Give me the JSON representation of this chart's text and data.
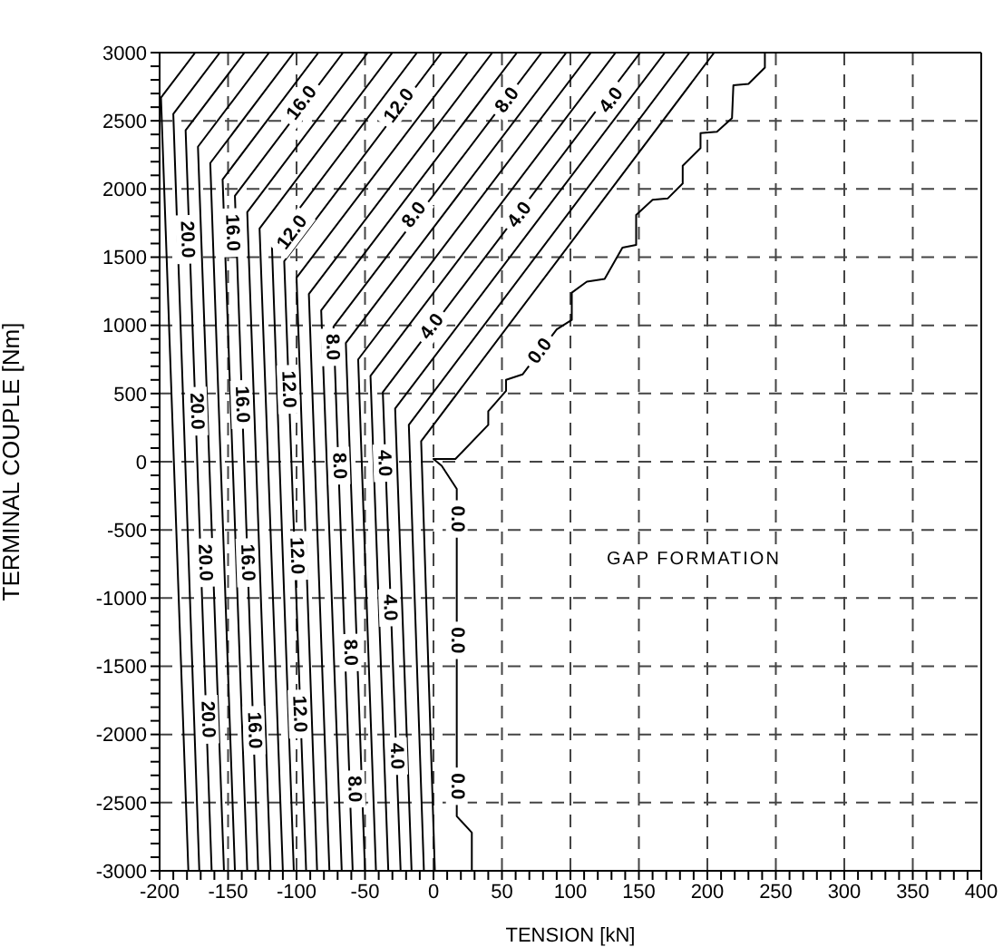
{
  "chart_data": {
    "type": "line",
    "xlabel": "TENSION [kN]",
    "ylabel": "TERMINAL COUPLE [Nm]",
    "xlim": [
      -200,
      400
    ],
    "ylim": [
      -3000,
      3000
    ],
    "xticks": [
      -200,
      {
        "value": -190,
        "label": null
      },
      {
        "value": -180,
        "label": null
      },
      {
        "value": -170,
        "label": null
      },
      {
        "value": -160,
        "label": null
      },
      -150,
      {
        "value": -140,
        "label": null
      },
      {
        "value": -130,
        "label": null
      },
      {
        "value": -120,
        "label": null
      },
      {
        "value": -110,
        "label": null
      },
      -100,
      {
        "value": -90,
        "label": null
      },
      {
        "value": -80,
        "label": null
      },
      {
        "value": -70,
        "label": null
      },
      {
        "value": -60,
        "label": null
      },
      -50,
      {
        "value": -40,
        "label": null
      },
      {
        "value": -30,
        "label": null
      },
      {
        "value": -20,
        "label": null
      },
      {
        "value": -10,
        "label": null
      },
      0,
      {
        "value": 10,
        "label": null
      },
      {
        "value": 20,
        "label": null
      },
      {
        "value": 30,
        "label": null
      },
      {
        "value": 40,
        "label": null
      },
      50,
      {
        "value": 60,
        "label": null
      },
      {
        "value": 70,
        "label": null
      },
      {
        "value": 80,
        "label": null
      },
      {
        "value": 90,
        "label": null
      },
      100,
      {
        "value": 110,
        "label": null
      },
      {
        "value": 120,
        "label": null
      },
      {
        "value": 130,
        "label": null
      },
      {
        "value": 140,
        "label": null
      },
      150,
      {
        "value": 160,
        "label": null
      },
      {
        "value": 170,
        "label": null
      },
      {
        "value": 180,
        "label": null
      },
      {
        "value": 190,
        "label": null
      },
      200,
      {
        "value": 210,
        "label": null
      },
      {
        "value": 220,
        "label": null
      },
      {
        "value": 230,
        "label": null
      },
      {
        "value": 240,
        "label": null
      },
      250,
      {
        "value": 260,
        "label": null
      },
      {
        "value": 270,
        "label": null
      },
      {
        "value": 280,
        "label": null
      },
      {
        "value": 290,
        "label": null
      },
      300,
      {
        "value": 310,
        "label": null
      },
      {
        "value": 320,
        "label": null
      },
      {
        "value": 330,
        "label": null
      },
      {
        "value": 340,
        "label": null
      },
      350,
      {
        "value": 360,
        "label": null
      },
      {
        "value": 370,
        "label": null
      },
      {
        "value": 380,
        "label": null
      },
      {
        "value": 390,
        "label": null
      },
      400
    ],
    "yticks": [
      -3000,
      {
        "value": -2900,
        "label": null
      },
      {
        "value": -2800,
        "label": null
      },
      {
        "value": -2700,
        "label": null
      },
      {
        "value": -2600,
        "label": null
      },
      -2500,
      {
        "value": -2400,
        "label": null
      },
      {
        "value": -2300,
        "label": null
      },
      {
        "value": -2200,
        "label": null
      },
      {
        "value": -2100,
        "label": null
      },
      -2000,
      {
        "value": -1900,
        "label": null
      },
      {
        "value": -1800,
        "label": null
      },
      {
        "value": -1700,
        "label": null
      },
      {
        "value": -1600,
        "label": null
      },
      -1500,
      {
        "value": -1400,
        "label": null
      },
      {
        "value": -1300,
        "label": null
      },
      {
        "value": -1200,
        "label": null
      },
      {
        "value": -1100,
        "label": null
      },
      -1000,
      {
        "value": -900,
        "label": null
      },
      {
        "value": -800,
        "label": null
      },
      {
        "value": -700,
        "label": null
      },
      {
        "value": -600,
        "label": null
      },
      -500,
      {
        "value": -400,
        "label": null
      },
      {
        "value": -300,
        "label": null
      },
      {
        "value": -200,
        "label": null
      },
      {
        "value": -100,
        "label": null
      },
      0,
      {
        "value": 100,
        "label": null
      },
      {
        "value": 200,
        "label": null
      },
      {
        "value": 300,
        "label": null
      },
      {
        "value": 400,
        "label": null
      },
      500,
      {
        "value": 600,
        "label": null
      },
      {
        "value": 700,
        "label": null
      },
      {
        "value": 800,
        "label": null
      },
      {
        "value": 900,
        "label": null
      },
      1000,
      {
        "value": 1100,
        "label": null
      },
      {
        "value": 1200,
        "label": null
      },
      {
        "value": 1300,
        "label": null
      },
      {
        "value": 1400,
        "label": null
      },
      1500,
      {
        "value": 1600,
        "label": null
      },
      {
        "value": 1700,
        "label": null
      },
      {
        "value": 1800,
        "label": null
      },
      {
        "value": 1900,
        "label": null
      },
      2000,
      {
        "value": 2100,
        "label": null
      },
      {
        "value": 2200,
        "label": null
      },
      {
        "value": 2300,
        "label": null
      },
      {
        "value": 2400,
        "label": null
      },
      2500,
      {
        "value": 2600,
        "label": null
      },
      {
        "value": 2700,
        "label": null
      },
      {
        "value": 2800,
        "label": null
      },
      {
        "value": 2900,
        "label": null
      },
      3000
    ],
    "grid": true,
    "line_style": "solid",
    "series": [
      {
        "color": "#000000",
        "x": [
          28,
          28,
          17,
          17,
          6,
          0,
          16,
          40,
          40,
          53,
          53,
          65,
          90,
          101,
          101,
          112,
          125,
          138,
          148,
          148,
          160,
          171,
          182,
          182,
          195,
          195,
          207,
          218,
          219,
          230,
          242,
          242
        ],
        "values": [
          -3000,
          -2720,
          -2600,
          -200,
          -30,
          20,
          20,
          270,
          370,
          520,
          600,
          640,
          970,
          1040,
          1240,
          1320,
          1340,
          1570,
          1590,
          1810,
          1920,
          1930,
          2040,
          2170,
          2300,
          2410,
          2420,
          2520,
          2760,
          2770,
          2890,
          3000
        ]
      },
      {
        "color": "#000000",
        "x": [
          1,
          -9,
          205
        ],
        "values": [
          -3000,
          150,
          3000
        ]
      },
      {
        "color": "#000000",
        "x": [
          -7,
          -18,
          187
        ],
        "values": [
          -3000,
          270,
          3000
        ]
      },
      {
        "color": "#000000",
        "x": [
          -16,
          -28,
          169
        ],
        "values": [
          -3000,
          390,
          3000
        ]
      },
      {
        "color": "#000000",
        "x": [
          -24,
          -37,
          151
        ],
        "values": [
          -3000,
          510,
          3000
        ]
      },
      {
        "color": "#000000",
        "x": [
          -33,
          -46,
          133
        ],
        "values": [
          -3000,
          630,
          3000
        ]
      },
      {
        "color": "#000000",
        "x": [
          -42,
          -55,
          115
        ],
        "values": [
          -3000,
          750,
          3000
        ]
      },
      {
        "color": "#000000",
        "x": [
          -50,
          -64,
          97
        ],
        "values": [
          -3000,
          870,
          3000
        ]
      },
      {
        "color": "#000000",
        "x": [
          -59,
          -73,
          79
        ],
        "values": [
          -3000,
          990,
          3000
        ]
      },
      {
        "color": "#000000",
        "x": [
          -67,
          -82,
          61
        ],
        "values": [
          -3000,
          1110,
          3000
        ]
      },
      {
        "color": "#000000",
        "x": [
          -76,
          -91,
          43
        ],
        "values": [
          -3000,
          1230,
          3000
        ]
      },
      {
        "color": "#000000",
        "x": [
          -85,
          -100,
          25
        ],
        "values": [
          -3000,
          1350,
          3000
        ]
      },
      {
        "color": "#000000",
        "x": [
          -93,
          -109,
          6
        ],
        "values": [
          -3000,
          1470,
          3000
        ]
      },
      {
        "color": "#000000",
        "x": [
          -102,
          -118,
          -12
        ],
        "values": [
          -3000,
          1590,
          3000
        ]
      },
      {
        "color": "#000000",
        "x": [
          -110,
          -127,
          -30
        ],
        "values": [
          -3000,
          1710,
          3000
        ]
      },
      {
        "color": "#000000",
        "x": [
          -119,
          -136,
          -48
        ],
        "values": [
          -3000,
          1830,
          3000
        ]
      },
      {
        "color": "#000000",
        "x": [
          -128,
          -145,
          -66
        ],
        "values": [
          -3000,
          1950,
          3000
        ]
      },
      {
        "color": "#000000",
        "x": [
          -136,
          -154,
          -84
        ],
        "values": [
          -3000,
          2070,
          3000
        ]
      },
      {
        "color": "#000000",
        "x": [
          -145,
          -163,
          -102
        ],
        "values": [
          -3000,
          2190,
          3000
        ]
      },
      {
        "color": "#000000",
        "x": [
          -153,
          -172,
          -120
        ],
        "values": [
          -3000,
          2310,
          3000
        ]
      },
      {
        "color": "#000000",
        "x": [
          -162,
          -181,
          -138
        ],
        "values": [
          -3000,
          2430,
          3000
        ]
      },
      {
        "color": "#000000",
        "x": [
          -171,
          -190,
          -156
        ],
        "values": [
          -3000,
          2550,
          3000
        ]
      },
      {
        "color": "#000000",
        "x": [
          -179,
          -199,
          -174
        ],
        "values": [
          -3000,
          2670,
          3000
        ]
      }
    ],
    "annotations": [
      {
        "text": "20.0",
        "x": -180,
        "y": 1630
      },
      {
        "text": "20.0",
        "x": -173,
        "y": 370
      },
      {
        "text": "20.0",
        "x": -167,
        "y": -740
      },
      {
        "text": "20.0",
        "x": -165,
        "y": -1890
      },
      {
        "text": "16.0",
        "x": -147,
        "y": 1680
      },
      {
        "text": "16.0",
        "x": -140,
        "y": 420
      },
      {
        "text": "16.0",
        "x": -136,
        "y": -740
      },
      {
        "text": "16.0",
        "x": -131,
        "y": -1970
      },
      {
        "text": "16.0",
        "x": -96,
        "y": 2630
      },
      {
        "text": "12.0",
        "x": -103,
        "y": 1680
      },
      {
        "text": "12.0",
        "x": -106,
        "y": 530
      },
      {
        "text": "12.0",
        "x": -100,
        "y": -690
      },
      {
        "text": "12.0",
        "x": -98,
        "y": -1850
      },
      {
        "text": "12.0",
        "x": -25,
        "y": 2610
      },
      {
        "text": "8.0",
        "x": -74,
        "y": 840
      },
      {
        "text": "8.0",
        "x": -69,
        "y": -30
      },
      {
        "text": "8.0",
        "x": -61,
        "y": -1400
      },
      {
        "text": "8.0",
        "x": -58,
        "y": -2400
      },
      {
        "text": "8.0",
        "x": -14,
        "y": 1810
      },
      {
        "text": "8.0",
        "x": 54,
        "y": 2650
      },
      {
        "text": "4.0",
        "x": -36,
        "y": -10
      },
      {
        "text": "4.0",
        "x": -32,
        "y": -1070
      },
      {
        "text": "4.0",
        "x": -27,
        "y": -2160
      },
      {
        "text": "4.0",
        "x": -1,
        "y": 990
      },
      {
        "text": "4.0",
        "x": 63,
        "y": 1810
      },
      {
        "text": "4.0",
        "x": 130,
        "y": 2650
      },
      {
        "text": "0.0",
        "x": 17,
        "y": -420
      },
      {
        "text": "0.0",
        "x": 17,
        "y": -1310
      },
      {
        "text": "0.0",
        "x": 17,
        "y": -2380
      },
      {
        "text": "0.0",
        "x": 78,
        "y": 810
      },
      "GAP FORMATION"
    ]
  }
}
